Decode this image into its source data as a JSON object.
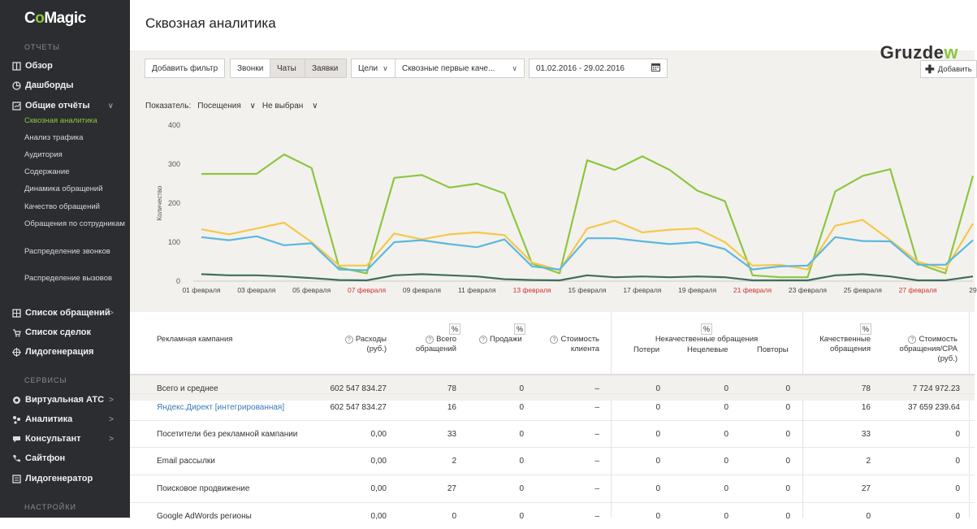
{
  "sidebar": {
    "logo_pre": "C",
    "logo_o": "o",
    "logo_post": "Magic",
    "section_reports": "ОТЧЕТЫ",
    "section_services": "СЕРВИСЫ",
    "section_settings": "НАСТРОЙКИ",
    "items": [
      {
        "label": "Обзор"
      },
      {
        "label": "Дашборды"
      },
      {
        "label": "Общие отчёты"
      },
      {
        "label": "Список обращений"
      },
      {
        "label": "Список сделок"
      },
      {
        "label": "Лидогенерация"
      },
      {
        "label": "Виртуальная АТС"
      },
      {
        "label": "Аналитика"
      },
      {
        "label": "Консультант"
      },
      {
        "label": "Сайтфон"
      },
      {
        "label": "Лидогенератор"
      }
    ],
    "subitems": [
      {
        "label": "Сквозная аналитика"
      },
      {
        "label": "Анализ трафика"
      },
      {
        "label": "Аудитория"
      },
      {
        "label": "Содержание"
      },
      {
        "label": "Динамика обращений"
      },
      {
        "label": "Качество обращений"
      },
      {
        "label": "Обращения по сотрудникам"
      },
      {
        "label": "Распределение звонков"
      },
      {
        "label": "Распределение вызовов"
      }
    ]
  },
  "header": {
    "title": "Сквозная аналитика",
    "watermark_pre": "Gruzde",
    "watermark_w": "w"
  },
  "toolbar": {
    "add_filter": "Добавить фильтр",
    "calls": "Звонки",
    "chats": "Чаты",
    "requests": "Заявки",
    "goals": "Цели",
    "model": "Сквозные первые каче...",
    "date_range": "01.02.2016 - 29.02.2016",
    "add": "Добавить"
  },
  "indicator": {
    "label": "Показатель:",
    "value1": "Посещения",
    "value2": "Не выбран"
  },
  "chart_data": {
    "type": "line",
    "ylabel": "Количество",
    "ylim": [
      0,
      400
    ],
    "yticks": [
      "400",
      "300",
      "200",
      "100",
      "0"
    ],
    "x": [
      "01",
      "02",
      "03",
      "04",
      "05",
      "06",
      "07",
      "08",
      "09",
      "10",
      "11",
      "12",
      "13",
      "14",
      "15",
      "16",
      "17",
      "18",
      "19",
      "20",
      "21",
      "22",
      "23",
      "24",
      "25",
      "26",
      "27",
      "28",
      "29"
    ],
    "xtick_labels": [
      {
        "label": "01 февраля",
        "weekend": false
      },
      {
        "label": "03 февраля",
        "weekend": false
      },
      {
        "label": "05 февраля",
        "weekend": false
      },
      {
        "label": "07 февраля",
        "weekend": true
      },
      {
        "label": "09 февраля",
        "weekend": false
      },
      {
        "label": "11 февраля",
        "weekend": false
      },
      {
        "label": "13 февраля",
        "weekend": true
      },
      {
        "label": "15 февраля",
        "weekend": false
      },
      {
        "label": "17 февраля",
        "weekend": false
      },
      {
        "label": "19 февраля",
        "weekend": false
      },
      {
        "label": "21 февраля",
        "weekend": true
      },
      {
        "label": "23 февраля",
        "weekend": false
      },
      {
        "label": "25 февраля",
        "weekend": false
      },
      {
        "label": "27 февраля",
        "weekend": true
      },
      {
        "label": "29",
        "weekend": false
      }
    ],
    "weekend_color": "#d0312d",
    "series": [
      {
        "color": "#8cc63f",
        "values": [
          275,
          275,
          275,
          325,
          290,
          35,
          20,
          265,
          272,
          240,
          250,
          225,
          45,
          20,
          310,
          285,
          320,
          285,
          232,
          205,
          15,
          10,
          10,
          230,
          270,
          287,
          45,
          20,
          270
        ]
      },
      {
        "color": "#f4c84a",
        "values": [
          133,
          120,
          135,
          150,
          100,
          40,
          40,
          122,
          107,
          120,
          125,
          118,
          48,
          28,
          135,
          155,
          125,
          132,
          135,
          100,
          40,
          42,
          30,
          142,
          157,
          105,
          50,
          30,
          148
        ]
      },
      {
        "color": "#5bb8e0",
        "values": [
          113,
          105,
          115,
          92,
          97,
          30,
          28,
          100,
          105,
          95,
          87,
          107,
          38,
          30,
          110,
          110,
          102,
          95,
          100,
          82,
          30,
          38,
          40,
          113,
          103,
          102,
          42,
          42,
          105
        ]
      },
      {
        "color": "#3e6e5c",
        "values": [
          18,
          15,
          15,
          12,
          8,
          3,
          2,
          15,
          18,
          15,
          12,
          5,
          3,
          2,
          15,
          10,
          12,
          10,
          12,
          10,
          2,
          2,
          2,
          15,
          18,
          12,
          2,
          2,
          12
        ]
      }
    ],
    "grid": false
  },
  "table": {
    "headers": {
      "campaign": "Рекламная кампания",
      "expenses": "Расходы (руб.)",
      "total": "Всего обращений",
      "sales": "Продажи",
      "cost_client": "Стоимость клиента",
      "bad": "Некачественные обращения",
      "lost": "Потери",
      "non_target": "Нецелевые",
      "repeat": "Повторы",
      "quality": "Качественные обращения",
      "cpa": "Стоимость обращения/CPA (руб.)",
      "pct": "%",
      "qm": "?"
    },
    "rows": [
      {
        "name": "Всего и среднее",
        "expenses": "602 547 834.27",
        "total": "78",
        "sales": "0",
        "cost": "–",
        "lost": "0",
        "non_target": "0",
        "repeat": "0",
        "quality": "78",
        "cpa": "7 724 972.23"
      },
      {
        "name": "Яндекс.Директ [интегрированная]",
        "expenses": "602 547 834.27",
        "total": "16",
        "sales": "0",
        "cost": "–",
        "lost": "0",
        "non_target": "0",
        "repeat": "0",
        "quality": "16",
        "cpa": "37 659 239.64"
      },
      {
        "name": "Посетители без рекламной кампании",
        "expenses": "0,00",
        "total": "33",
        "sales": "0",
        "cost": "–",
        "lost": "0",
        "non_target": "0",
        "repeat": "0",
        "quality": "33",
        "cpa": "0"
      },
      {
        "name": "Email рассылки",
        "expenses": "0,00",
        "total": "2",
        "sales": "0",
        "cost": "–",
        "lost": "0",
        "non_target": "0",
        "repeat": "0",
        "quality": "2",
        "cpa": "0"
      },
      {
        "name": "Поисковое продвижение",
        "expenses": "0,00",
        "total": "27",
        "sales": "0",
        "cost": "–",
        "lost": "0",
        "non_target": "0",
        "repeat": "0",
        "quality": "27",
        "cpa": "0"
      },
      {
        "name": "Google AdWords регионы",
        "expenses": "0,00",
        "total": "0",
        "sales": "0",
        "cost": "–",
        "lost": "0",
        "non_target": "0",
        "repeat": "0",
        "quality": "0",
        "cpa": "0"
      }
    ]
  }
}
